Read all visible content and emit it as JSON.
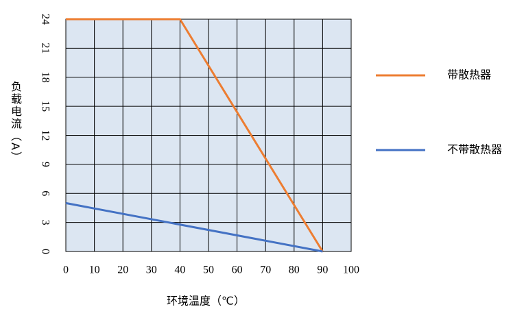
{
  "chart_data": {
    "type": "line",
    "xlabel": "环境温度（℃）",
    "ylabel": "负载电流（A）",
    "xlim": [
      0,
      100
    ],
    "xticks": [
      0,
      10,
      20,
      30,
      40,
      50,
      60,
      70,
      80,
      90,
      100
    ],
    "ylim": [
      0,
      24
    ],
    "yticks": [
      0,
      3,
      6,
      9,
      12,
      15,
      18,
      21,
      24
    ],
    "grid": true,
    "legend": "right",
    "background": "#dce6f2",
    "series": [
      {
        "name": "带散热器",
        "color": "#ed7d31",
        "x": [
          0,
          40,
          90
        ],
        "values": [
          24,
          24,
          0
        ]
      },
      {
        "name": "不带散热器",
        "color": "#4472c4",
        "x": [
          0,
          90
        ],
        "values": [
          5,
          0
        ]
      }
    ]
  }
}
